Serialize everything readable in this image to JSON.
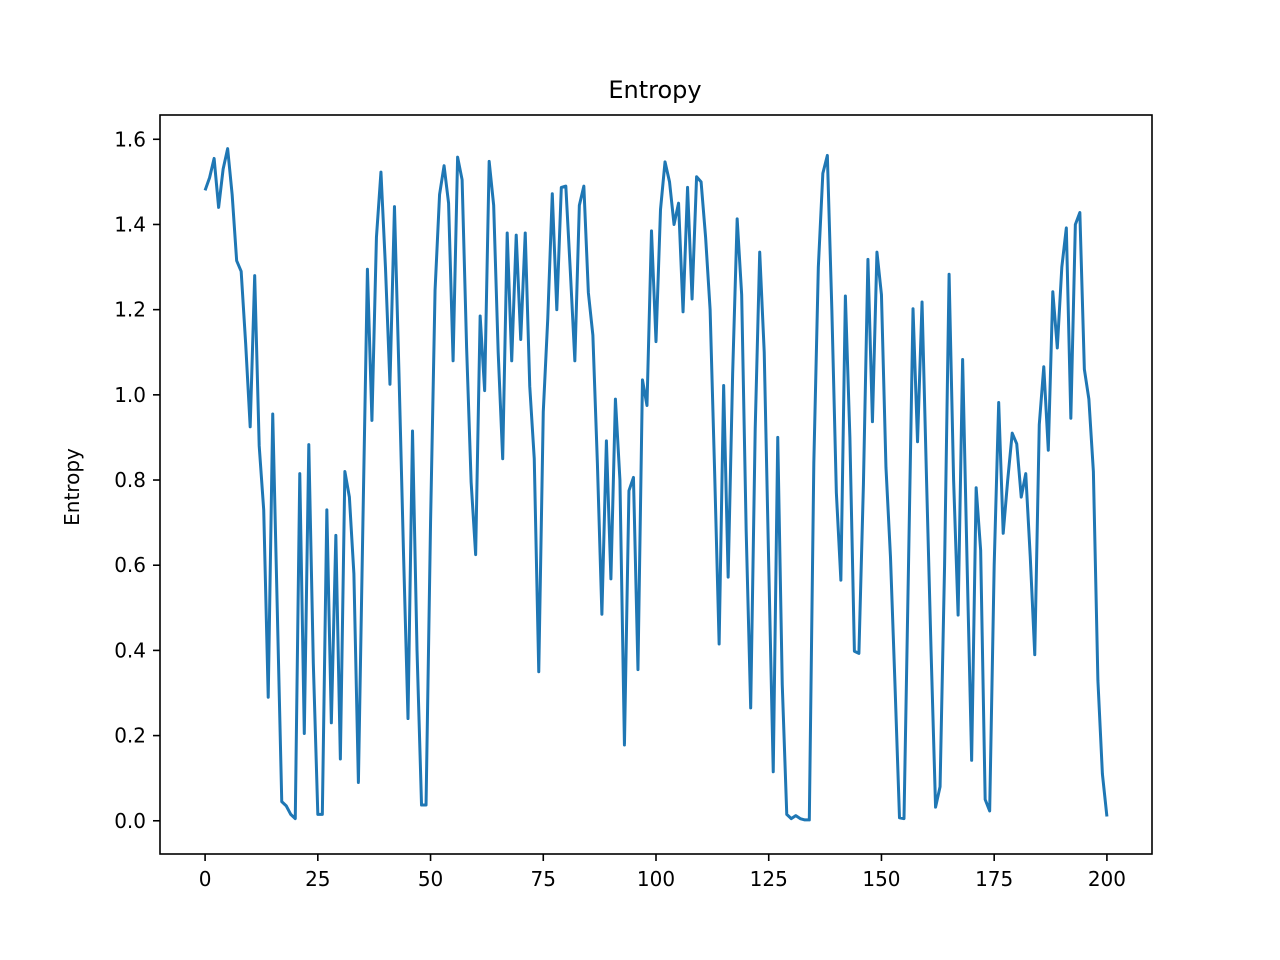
{
  "chart_data": {
    "type": "line",
    "title": "Entropy",
    "xlabel": "",
    "ylabel": "Entropy",
    "xlim": [
      -10,
      210
    ],
    "ylim": [
      -0.078,
      1.657
    ],
    "grid": false,
    "xticks": [
      0,
      25,
      50,
      75,
      100,
      125,
      150,
      175,
      200
    ],
    "xtick_labels": [
      "0",
      "25",
      "50",
      "75",
      "100",
      "125",
      "150",
      "175",
      "200"
    ],
    "yticks": [
      0.0,
      0.2,
      0.4,
      0.6,
      0.8,
      1.0,
      1.2,
      1.4,
      1.6
    ],
    "ytick_labels": [
      "0.0",
      "0.2",
      "0.4",
      "0.6",
      "0.8",
      "1.0",
      "1.2",
      "1.4",
      "1.6"
    ],
    "colors": {
      "line": "#1f77b4",
      "axes": "#000000",
      "background": "#ffffff"
    },
    "series": [
      {
        "values": [
          1.48,
          1.51,
          1.555,
          1.44,
          1.53,
          1.578,
          1.47,
          1.315,
          1.29,
          1.12,
          0.925,
          1.28,
          0.88,
          0.73,
          0.29,
          0.955,
          0.5,
          0.045,
          0.035,
          0.015,
          0.005,
          0.815,
          0.205,
          0.883,
          0.37,
          0.015,
          0.015,
          0.73,
          0.23,
          0.67,
          0.145,
          0.82,
          0.76,
          0.58,
          0.09,
          0.7,
          1.295,
          0.94,
          1.37,
          1.523,
          1.3,
          1.025,
          1.442,
          1.05,
          0.63,
          0.24,
          0.915,
          0.4,
          0.037,
          0.037,
          0.7,
          1.245,
          1.47,
          1.538,
          1.45,
          1.08,
          1.558,
          1.505,
          1.11,
          0.795,
          0.625,
          1.185,
          1.01,
          1.548,
          1.445,
          1.1,
          0.85,
          1.38,
          1.08,
          1.375,
          1.13,
          1.38,
          1.02,
          0.85,
          0.35,
          0.96,
          1.18,
          1.472,
          1.2,
          1.487,
          1.49,
          1.29,
          1.08,
          1.445,
          1.49,
          1.24,
          1.14,
          0.84,
          0.485,
          0.892,
          0.568,
          0.99,
          0.8,
          0.178,
          0.775,
          0.806,
          0.355,
          1.035,
          0.975,
          1.385,
          1.125,
          1.435,
          1.547,
          1.5,
          1.4,
          1.45,
          1.195,
          1.487,
          1.225,
          1.512,
          1.5,
          1.37,
          1.2,
          0.82,
          0.415,
          1.022,
          0.572,
          1.05,
          1.413,
          1.235,
          0.68,
          0.265,
          0.92,
          1.335,
          1.1,
          0.6,
          0.115,
          0.9,
          0.32,
          0.015,
          0.005,
          0.012,
          0.005,
          0.002,
          0.002,
          0.84,
          1.3,
          1.52,
          1.562,
          1.2,
          0.77,
          0.565,
          1.232,
          0.9,
          0.398,
          0.393,
          0.79,
          1.318,
          0.937,
          1.335,
          1.235,
          0.83,
          0.62,
          0.32,
          0.007,
          0.005,
          0.6,
          1.202,
          0.89,
          1.218,
          0.8,
          0.4,
          0.032,
          0.08,
          0.6,
          1.283,
          0.8,
          0.483,
          1.083,
          0.6,
          0.142,
          0.782,
          0.635,
          0.05,
          0.023,
          0.6,
          0.982,
          0.675,
          0.8,
          0.91,
          0.885,
          0.76,
          0.815,
          0.62,
          0.39,
          0.93,
          1.066,
          0.87,
          1.242,
          1.11,
          1.3,
          1.392,
          0.945,
          1.4,
          1.428,
          1.06,
          0.99,
          0.82,
          0.33,
          0.11,
          0.01
        ]
      }
    ]
  }
}
